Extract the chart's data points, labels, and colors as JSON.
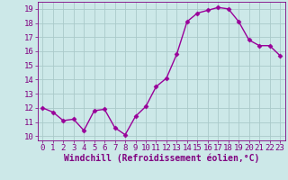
{
  "x": [
    0,
    1,
    2,
    3,
    4,
    5,
    6,
    7,
    8,
    9,
    10,
    11,
    12,
    13,
    14,
    15,
    16,
    17,
    18,
    19,
    20,
    21,
    22,
    23
  ],
  "y": [
    12.0,
    11.7,
    11.1,
    11.2,
    10.4,
    11.8,
    11.9,
    10.6,
    10.1,
    11.4,
    12.1,
    13.5,
    14.1,
    15.8,
    18.1,
    18.7,
    18.9,
    19.1,
    19.0,
    18.1,
    16.8,
    16.4,
    16.4,
    15.7
  ],
  "line_color": "#990099",
  "marker": "D",
  "markersize": 2.5,
  "linewidth": 1.0,
  "xlabel": "Windchill (Refroidissement éolien,°C)",
  "xlabel_fontsize": 7,
  "ylabel_ticks": [
    10,
    11,
    12,
    13,
    14,
    15,
    16,
    17,
    18,
    19
  ],
  "xtick_labels": [
    "0",
    "1",
    "2",
    "3",
    "4",
    "5",
    "6",
    "7",
    "8",
    "9",
    "10",
    "11",
    "12",
    "13",
    "14",
    "15",
    "16",
    "17",
    "18",
    "19",
    "20",
    "21",
    "22",
    "23"
  ],
  "xlim": [
    -0.5,
    23.5
  ],
  "ylim": [
    9.7,
    19.5
  ],
  "bg_color": "#cce8e8",
  "grid_color": "#aacaca",
  "tick_color": "#800080",
  "tick_fontsize": 6.5,
  "tick_label_color": "#800080"
}
